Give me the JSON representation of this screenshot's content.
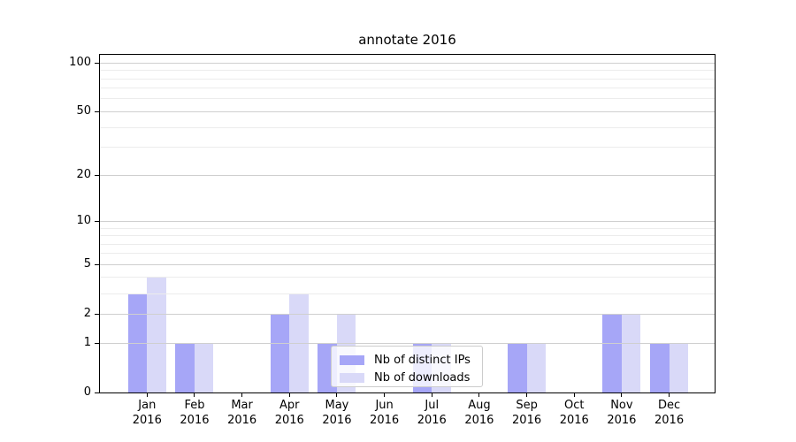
{
  "title": "annotate 2016",
  "chart_data": {
    "type": "bar",
    "title": "annotate 2016",
    "categories": [
      "Jan",
      "Feb",
      "Mar",
      "Apr",
      "May",
      "Jun",
      "Jul",
      "Aug",
      "Sep",
      "Oct",
      "Nov",
      "Dec"
    ],
    "year": "2016",
    "series": [
      {
        "name": "Nb of distinct IPs",
        "color": "#a6a6f7",
        "values": [
          3,
          1,
          0,
          2,
          1,
          0,
          1,
          0,
          1,
          0,
          2,
          1
        ]
      },
      {
        "name": "Nb of downloads",
        "color": "#d9d9f8",
        "values": [
          4,
          1,
          0,
          3,
          2,
          0,
          1,
          0,
          1,
          0,
          2,
          1
        ]
      }
    ],
    "xlabel": "",
    "ylabel": "",
    "yscale": "log10(1+value)",
    "ylim": [
      0,
      112
    ],
    "yticks_major": [
      0,
      1,
      2,
      5,
      10,
      20,
      50,
      100
    ],
    "yticks_minor": [
      3,
      4,
      6,
      7,
      8,
      9,
      30,
      40,
      60,
      70,
      80,
      90
    ],
    "grid": "horizontal, major and minor, drawn above bars",
    "legend_position": "lower center, inside axes"
  },
  "legend": {
    "items": [
      {
        "label": "Nb of distinct IPs"
      },
      {
        "label": "Nb of downloads"
      }
    ]
  },
  "colors": {
    "background": "#ffffff",
    "bar_distinct_ips": "#a6a6f7",
    "bar_downloads": "#d9d9f8",
    "grid_major": "#cfcfcf",
    "grid_minor": "#ececec",
    "spine": "#000000",
    "legend_border": "#cccccc",
    "text": "#000000"
  }
}
